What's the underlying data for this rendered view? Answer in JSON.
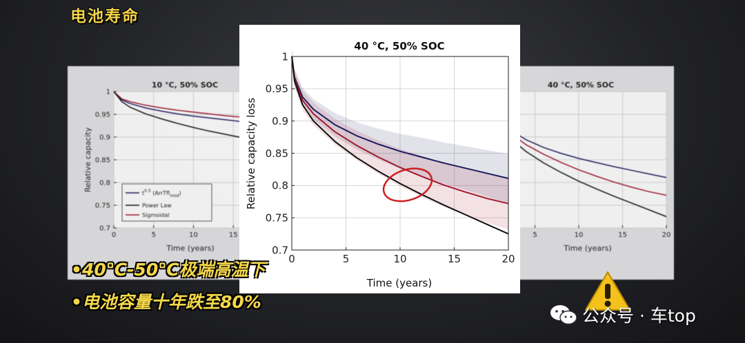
{
  "overlay": {
    "corner_title": "电池寿命",
    "captions": [
      "•40℃-50℃极端高温下",
      "•电池容量十年跌至80%"
    ],
    "watermark": "公众号 · 车top",
    "icons": [
      "wechat-icon",
      "warning-icon"
    ]
  },
  "chart_data": [
    {
      "type": "line",
      "panel": "main",
      "title": "40 °C, 50% SOC",
      "xlabel": "Time (years)",
      "ylabel": "Relative capacity loss",
      "xlim": [
        0,
        20
      ],
      "ylim": [
        0.7,
        1
      ],
      "xticks": [
        0,
        5,
        10,
        15,
        20
      ],
      "yticks": [
        0.7,
        0.75,
        0.8,
        0.85,
        0.9,
        0.95,
        1
      ],
      "grid": true,
      "series": [
        {
          "color": "#1c1c5e",
          "x": [
            0,
            0.25,
            1,
            2,
            4,
            6,
            8,
            10,
            12,
            14,
            16,
            18,
            20
          ],
          "y": [
            1.0,
            0.968,
            0.937,
            0.918,
            0.894,
            0.877,
            0.864,
            0.853,
            0.844,
            0.835,
            0.827,
            0.819,
            0.811
          ],
          "band": [
            0.012,
            0.014,
            0.018,
            0.024,
            0.03,
            0.034,
            0.038
          ]
        },
        {
          "color": "#a0182d",
          "x": [
            0,
            0.25,
            1,
            2,
            4,
            6,
            8,
            10,
            12,
            14,
            16,
            18,
            20
          ],
          "y": [
            1.0,
            0.966,
            0.932,
            0.911,
            0.883,
            0.862,
            0.844,
            0.828,
            0.814,
            0.801,
            0.79,
            0.78,
            0.772
          ],
          "band": [
            0.012,
            0.015,
            0.02,
            0.026,
            0.032,
            0.036,
            0.04
          ]
        },
        {
          "color": "#111111",
          "x": [
            0,
            0.25,
            1,
            2,
            4,
            6,
            8,
            10,
            12,
            14,
            16,
            18,
            20
          ],
          "y": [
            1.0,
            0.962,
            0.925,
            0.9,
            0.868,
            0.843,
            0.822,
            0.803,
            0.786,
            0.77,
            0.755,
            0.74,
            0.725
          ],
          "band": []
        }
      ],
      "annotation": {
        "shape": "ellipse",
        "color": "#cc1f1f",
        "center": [
          10.7,
          0.801
        ]
      }
    },
    {
      "type": "line",
      "panel": "left",
      "title": "10 °C, 50% SOC",
      "xlabel": "Time (years)",
      "ylabel": "Relative capacity",
      "xlim": [
        0,
        20
      ],
      "ylim": [
        0.7,
        1
      ],
      "xticks": [
        0,
        5,
        10,
        15
      ],
      "yticks": [
        0.7,
        0.75,
        0.8,
        0.85,
        0.9,
        0.95,
        1
      ],
      "grid": true,
      "legend": {
        "placement": "bottom-left",
        "entries": [
          {
            "name_main": "t",
            "name_sup": "0.5",
            "name_rest": " (ArrTfl",
            "name_sub": "mod",
            "name_end": ")",
            "color": "#1c1c5e"
          },
          {
            "name": "Power Law",
            "color": "#111111"
          },
          {
            "name": "Sigmoidal",
            "color": "#a0182d"
          }
        ]
      },
      "series": [
        {
          "color": "#1c1c5e",
          "x": [
            0,
            1,
            2,
            4,
            6,
            8,
            10,
            12,
            14,
            16,
            18,
            20
          ],
          "y": [
            1.0,
            0.982,
            0.974,
            0.964,
            0.957,
            0.951,
            0.946,
            0.942,
            0.938,
            0.934,
            0.931,
            0.928
          ]
        },
        {
          "color": "#a0182d",
          "x": [
            0,
            1,
            2,
            4,
            6,
            8,
            10,
            12,
            14,
            16,
            18,
            20
          ],
          "y": [
            1.0,
            0.984,
            0.978,
            0.97,
            0.964,
            0.959,
            0.955,
            0.951,
            0.947,
            0.944,
            0.941,
            0.938
          ]
        },
        {
          "color": "#111111",
          "x": [
            0,
            1,
            2,
            4,
            6,
            8,
            10,
            12,
            14,
            16,
            18,
            20
          ],
          "y": [
            1.0,
            0.978,
            0.966,
            0.951,
            0.94,
            0.93,
            0.921,
            0.913,
            0.906,
            0.899,
            0.893,
            0.887
          ]
        }
      ]
    },
    {
      "type": "line",
      "panel": "right",
      "title": "40 °C, 50% SOC",
      "xlabel": "Time (years)",
      "ylabel": "",
      "xlim": [
        0,
        20
      ],
      "ylim": [
        0.7,
        1
      ],
      "xticks": [
        5,
        10,
        15,
        20
      ],
      "yticks": [],
      "grid": true,
      "series": [
        {
          "color": "#1c1c5e",
          "x": [
            0,
            2,
            4,
            6,
            8,
            10,
            12,
            14,
            16,
            18,
            20
          ],
          "y": [
            1.0,
            0.918,
            0.894,
            0.877,
            0.864,
            0.853,
            0.844,
            0.835,
            0.827,
            0.819,
            0.811
          ]
        },
        {
          "color": "#a0182d",
          "x": [
            0,
            2,
            4,
            6,
            8,
            10,
            12,
            14,
            16,
            18,
            20
          ],
          "y": [
            1.0,
            0.911,
            0.883,
            0.862,
            0.844,
            0.828,
            0.814,
            0.801,
            0.79,
            0.78,
            0.772
          ]
        },
        {
          "color": "#111111",
          "x": [
            0,
            2,
            4,
            6,
            8,
            10,
            12,
            14,
            16,
            18,
            20
          ],
          "y": [
            1.0,
            0.9,
            0.868,
            0.843,
            0.822,
            0.803,
            0.786,
            0.77,
            0.755,
            0.74,
            0.725
          ]
        }
      ]
    }
  ]
}
